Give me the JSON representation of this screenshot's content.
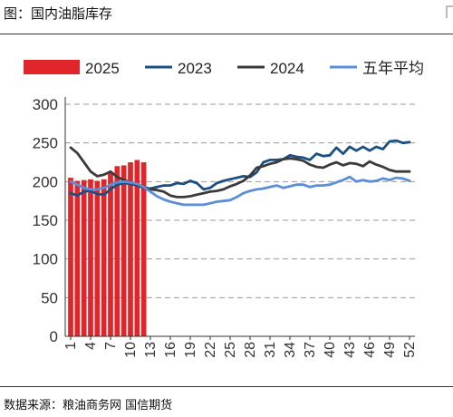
{
  "figure": {
    "title": "图：国内油脂库存",
    "source": "数据来源：粮油商务网  国信期货"
  },
  "colors": {
    "s2025": "#E0262B",
    "s2023": "#1B4F82",
    "s2024": "#3A3A3A",
    "avg5": "#5B8ED8"
  },
  "chart_data": {
    "type": "bar+line",
    "title": "",
    "xlabel": "",
    "ylabel": "",
    "x_range": [
      1,
      52
    ],
    "x_tick_labels": [
      "1",
      "4",
      "7",
      "10",
      "13",
      "16",
      "19",
      "22",
      "25",
      "28",
      "31",
      "34",
      "37",
      "40",
      "43",
      "46",
      "49",
      "52"
    ],
    "ylim": [
      0,
      300
    ],
    "y_ticks": [
      0,
      50,
      100,
      150,
      200,
      250,
      300
    ],
    "grid": "horizontal dashed",
    "legend_position": "top",
    "series": [
      {
        "name": "2025",
        "kind": "bar",
        "color_key": "s2025",
        "x": [
          1,
          2,
          3,
          4,
          5,
          6,
          7,
          8,
          9,
          10,
          11,
          12,
          13
        ],
        "values": [
          205,
          201,
          202,
          203,
          201,
          203,
          212,
          220,
          221,
          225,
          228,
          225,
          null
        ]
      },
      {
        "name": "2023",
        "kind": "line",
        "color_key": "s2023",
        "x": [
          1,
          2,
          3,
          4,
          5,
          6,
          7,
          8,
          9,
          10,
          11,
          12,
          13,
          14,
          15,
          16,
          17,
          18,
          19,
          20,
          21,
          22,
          23,
          24,
          25,
          26,
          27,
          28,
          29,
          30,
          31,
          32,
          33,
          34,
          35,
          36,
          37,
          38,
          39,
          40,
          41,
          42,
          43,
          44,
          45,
          46,
          47,
          48,
          49,
          50,
          51,
          52
        ],
        "values": [
          185,
          182,
          187,
          188,
          184,
          183,
          190,
          196,
          198,
          197,
          195,
          192,
          191,
          193,
          195,
          195,
          198,
          197,
          201,
          198,
          190,
          192,
          198,
          201,
          203,
          205,
          207,
          206,
          212,
          225,
          228,
          228,
          229,
          234,
          232,
          231,
          228,
          236,
          233,
          234,
          244,
          236,
          245,
          240,
          245,
          240,
          245,
          242,
          252,
          253,
          250,
          251
        ]
      },
      {
        "name": "2024",
        "kind": "line",
        "color_key": "s2024",
        "x": [
          1,
          2,
          3,
          4,
          5,
          6,
          7,
          8,
          9,
          10,
          11,
          12,
          13,
          14,
          15,
          16,
          17,
          18,
          19,
          20,
          21,
          22,
          23,
          24,
          25,
          26,
          27,
          28,
          29,
          30,
          31,
          32,
          33,
          34,
          35,
          36,
          37,
          38,
          39,
          40,
          41,
          42,
          43,
          44,
          45,
          46,
          47,
          48,
          49,
          50,
          51,
          52
        ],
        "values": [
          244,
          237,
          225,
          213,
          207,
          209,
          213,
          206,
          202,
          199,
          196,
          193,
          190,
          189,
          187,
          182,
          180,
          180,
          181,
          183,
          185,
          187,
          188,
          190,
          194,
          197,
          201,
          208,
          218,
          220,
          223,
          225,
          229,
          230,
          229,
          227,
          222,
          219,
          218,
          222,
          225,
          221,
          224,
          223,
          220,
          226,
          222,
          219,
          215,
          213,
          213,
          213
        ]
      },
      {
        "name": "五年平均",
        "kind": "line",
        "color_key": "avg5",
        "x": [
          1,
          2,
          3,
          4,
          5,
          6,
          7,
          8,
          9,
          10,
          11,
          12,
          13,
          14,
          15,
          16,
          17,
          18,
          19,
          20,
          21,
          22,
          23,
          24,
          25,
          26,
          27,
          28,
          29,
          30,
          31,
          32,
          33,
          34,
          35,
          36,
          37,
          38,
          39,
          40,
          41,
          42,
          43,
          44,
          45,
          46,
          47,
          48,
          49,
          50,
          51,
          52
        ],
        "values": [
          200,
          196,
          192,
          190,
          190,
          192,
          196,
          199,
          200,
          199,
          197,
          193,
          187,
          181,
          177,
          174,
          172,
          170,
          170,
          170,
          170,
          172,
          174,
          175,
          176,
          180,
          185,
          188,
          190,
          191,
          193,
          195,
          192,
          194,
          196,
          196,
          193,
          195,
          195,
          196,
          199,
          202,
          206,
          200,
          202,
          200,
          201,
          204,
          202,
          205,
          204,
          201
        ]
      }
    ]
  }
}
